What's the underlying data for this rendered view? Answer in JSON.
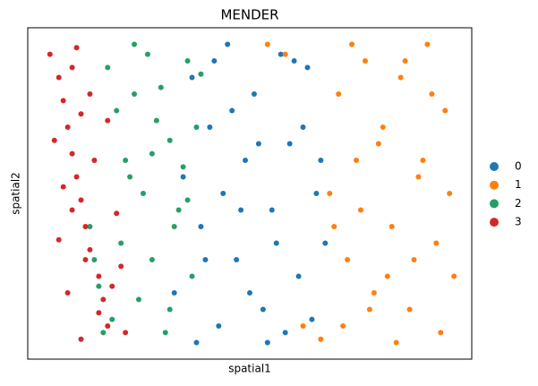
{
  "chart_data": {
    "type": "scatter",
    "title": "MENDER",
    "x_label": "spatial1",
    "y_label": "spatial2",
    "xlim": [
      0,
      100
    ],
    "ylim": [
      0,
      100
    ],
    "series": [
      {
        "name": "0",
        "color": "#1f77b4",
        "x": [
          33,
          35,
          37,
          39,
          41,
          43,
          45,
          47,
          49,
          51,
          53,
          55,
          57,
          59,
          61,
          63,
          65,
          67,
          38,
          42,
          46,
          50,
          54,
          58,
          62,
          66,
          40,
          48,
          56,
          64,
          44,
          52,
          60
        ],
        "values": [
          20,
          55,
          85,
          40,
          70,
          10,
          95,
          30,
          60,
          80,
          15,
          45,
          92,
          65,
          25,
          88,
          50,
          35,
          5,
          90,
          75,
          20,
          5,
          8,
          70,
          60,
          30,
          45,
          35,
          12,
          50,
          65,
          90
        ]
      },
      {
        "name": "1",
        "color": "#ff7f0e",
        "x": [
          54,
          58,
          62,
          66,
          68,
          70,
          72,
          74,
          76,
          78,
          80,
          82,
          84,
          86,
          88,
          90,
          92,
          94,
          96,
          71,
          75,
          79,
          83,
          87,
          91,
          95,
          73,
          81,
          89,
          69,
          77,
          85,
          93
        ],
        "values": [
          95,
          92,
          10,
          6,
          50,
          80,
          30,
          60,
          90,
          20,
          70,
          40,
          85,
          15,
          55,
          95,
          35,
          75,
          25,
          10,
          45,
          65,
          5,
          30,
          80,
          50,
          95,
          25,
          60,
          40,
          15,
          90,
          8
        ]
      },
      {
        "name": "2",
        "color": "#279e68",
        "x": [
          14,
          16,
          18,
          20,
          22,
          24,
          26,
          28,
          30,
          32,
          34,
          36,
          38,
          19,
          21,
          23,
          25,
          27,
          29,
          31,
          33,
          35,
          37,
          15,
          17,
          24,
          28,
          32,
          36,
          39
        ],
        "values": [
          40,
          22,
          88,
          75,
          60,
          95,
          50,
          30,
          82,
          66,
          45,
          90,
          70,
          12,
          35,
          55,
          18,
          92,
          72,
          8,
          40,
          58,
          25,
          30,
          8,
          80,
          62,
          15,
          48,
          86
        ]
      },
      {
        "name": "3",
        "color": "#d62728",
        "x": [
          5,
          7,
          8,
          9,
          10,
          11,
          12,
          13,
          14,
          16,
          17,
          18,
          6,
          8,
          10,
          12,
          13,
          15,
          19,
          20,
          21,
          22,
          7,
          9,
          11,
          14,
          16,
          18,
          12,
          10
        ],
        "values": [
          92,
          85,
          78,
          70,
          62,
          55,
          48,
          40,
          33,
          25,
          18,
          10,
          66,
          52,
          88,
          74,
          30,
          60,
          22,
          44,
          28,
          8,
          36,
          20,
          94,
          80,
          14,
          72,
          6,
          45
        ]
      }
    ]
  }
}
